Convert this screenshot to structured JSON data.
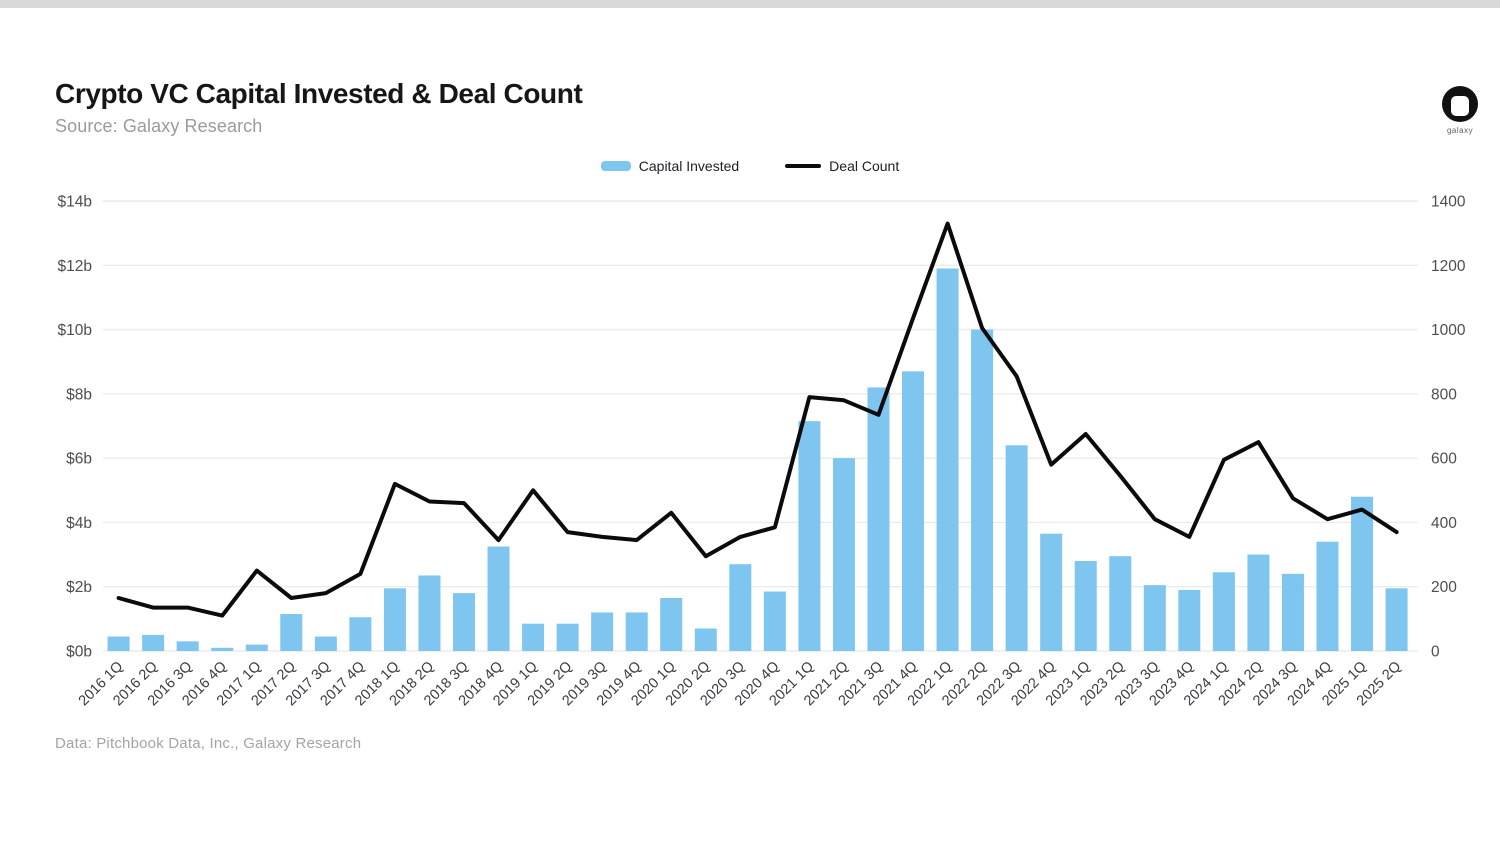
{
  "header": {
    "title": "Crypto VC Capital Invested & Deal Count",
    "source": "Source: Galaxy Research"
  },
  "logo": {
    "label": "galaxy"
  },
  "footer": {
    "note": "Data: Pitchbook Data, Inc., Galaxy Research"
  },
  "chart_data": {
    "type": "combo",
    "title": "Crypto VC Capital Invested & Deal Count",
    "grid": true,
    "legend_position": "top-center",
    "categories": [
      "2016 1Q",
      "2016 2Q",
      "2016 3Q",
      "2016 4Q",
      "2017 1Q",
      "2017 2Q",
      "2017 3Q",
      "2017 4Q",
      "2018 1Q",
      "2018 2Q",
      "2018 3Q",
      "2018 4Q",
      "2019 1Q",
      "2019 2Q",
      "2019 3Q",
      "2019 4Q",
      "2020 1Q",
      "2020 2Q",
      "2020 3Q",
      "2020 4Q",
      "2021 1Q",
      "2021 2Q",
      "2021 3Q",
      "2021 4Q",
      "2022 1Q",
      "2022 2Q",
      "2022 3Q",
      "2022 4Q",
      "2023 1Q",
      "2023 2Q",
      "2023 3Q",
      "2023 4Q",
      "2024 1Q",
      "2024 2Q",
      "2024 3Q",
      "2024 4Q",
      "2025 1Q",
      "2025 2Q"
    ],
    "series": [
      {
        "name": "Capital Invested",
        "type": "bar",
        "axis": "left",
        "unit": "USD billions",
        "color": "#7EC5F0",
        "values": [
          0.45,
          0.5,
          0.3,
          0.1,
          0.2,
          1.15,
          0.45,
          1.05,
          1.95,
          2.35,
          1.8,
          3.25,
          0.85,
          0.85,
          1.2,
          1.2,
          1.65,
          0.7,
          2.7,
          1.85,
          7.15,
          6.0,
          8.2,
          8.7,
          11.9,
          10.0,
          6.4,
          3.65,
          2.8,
          2.95,
          2.05,
          1.9,
          2.45,
          3.0,
          2.4,
          3.4,
          4.8,
          1.95
        ]
      },
      {
        "name": "Deal Count",
        "type": "line",
        "axis": "right",
        "unit": "deals",
        "color": "#0b0b0d",
        "values": [
          165,
          135,
          135,
          110,
          250,
          165,
          180,
          240,
          520,
          465,
          460,
          345,
          500,
          370,
          355,
          345,
          430,
          295,
          355,
          385,
          790,
          780,
          735,
          1035,
          1330,
          1005,
          855,
          580,
          675,
          545,
          410,
          355,
          595,
          650,
          475,
          410,
          440,
          370
        ]
      }
    ],
    "left_axis": {
      "min": 0,
      "max": 14,
      "ticks": [
        "$0b",
        "$2b",
        "$4b",
        "$6b",
        "$8b",
        "$10b",
        "$12b",
        "$14b"
      ]
    },
    "right_axis": {
      "min": 0,
      "max": 1400,
      "ticks": [
        "0",
        "200",
        "400",
        "600",
        "800",
        "1000",
        "1200",
        "1400"
      ]
    }
  }
}
